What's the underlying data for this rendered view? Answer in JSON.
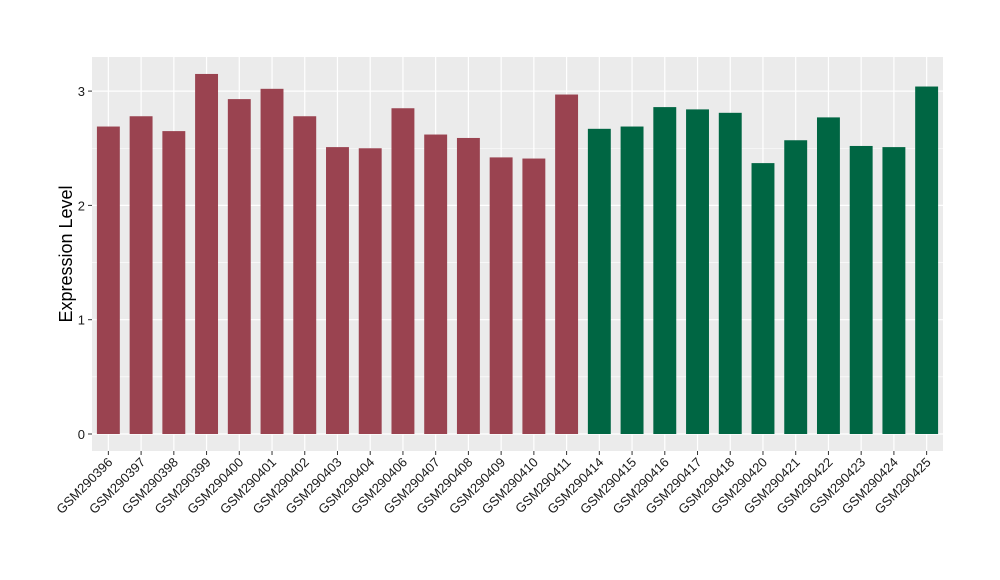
{
  "chart_data": {
    "type": "bar",
    "ylabel": "Expression Level",
    "xlabel": "",
    "title": "",
    "ylim": [
      -0.15,
      3.3
    ],
    "yticks": [
      0,
      1,
      2,
      3
    ],
    "grid": true,
    "legend": "none",
    "categories": [
      "GSM290396",
      "GSM290397",
      "GSM290398",
      "GSM290399",
      "GSM290400",
      "GSM290401",
      "GSM290402",
      "GSM290403",
      "GSM290404",
      "GSM290406",
      "GSM290407",
      "GSM290408",
      "GSM290409",
      "GSM290410",
      "GSM290411",
      "GSM290414",
      "GSM290415",
      "GSM290416",
      "GSM290417",
      "GSM290418",
      "GSM290420",
      "GSM290421",
      "GSM290422",
      "GSM290423",
      "GSM290424",
      "GSM290425"
    ],
    "values": [
      2.69,
      2.78,
      2.65,
      3.15,
      2.93,
      3.02,
      2.78,
      2.51,
      2.5,
      2.85,
      2.62,
      2.59,
      2.42,
      2.41,
      2.97,
      2.67,
      2.69,
      2.86,
      2.84,
      2.81,
      2.37,
      2.57,
      2.77,
      2.52,
      2.51,
      3.04
    ],
    "groups": [
      1,
      1,
      1,
      1,
      1,
      1,
      1,
      1,
      1,
      1,
      1,
      1,
      1,
      1,
      1,
      2,
      2,
      2,
      2,
      2,
      2,
      2,
      2,
      2,
      2,
      2
    ],
    "colors": {
      "group1": "#9a4350",
      "group2": "#006643",
      "panel": "#ebebeb",
      "grid": "#ffffff"
    }
  }
}
